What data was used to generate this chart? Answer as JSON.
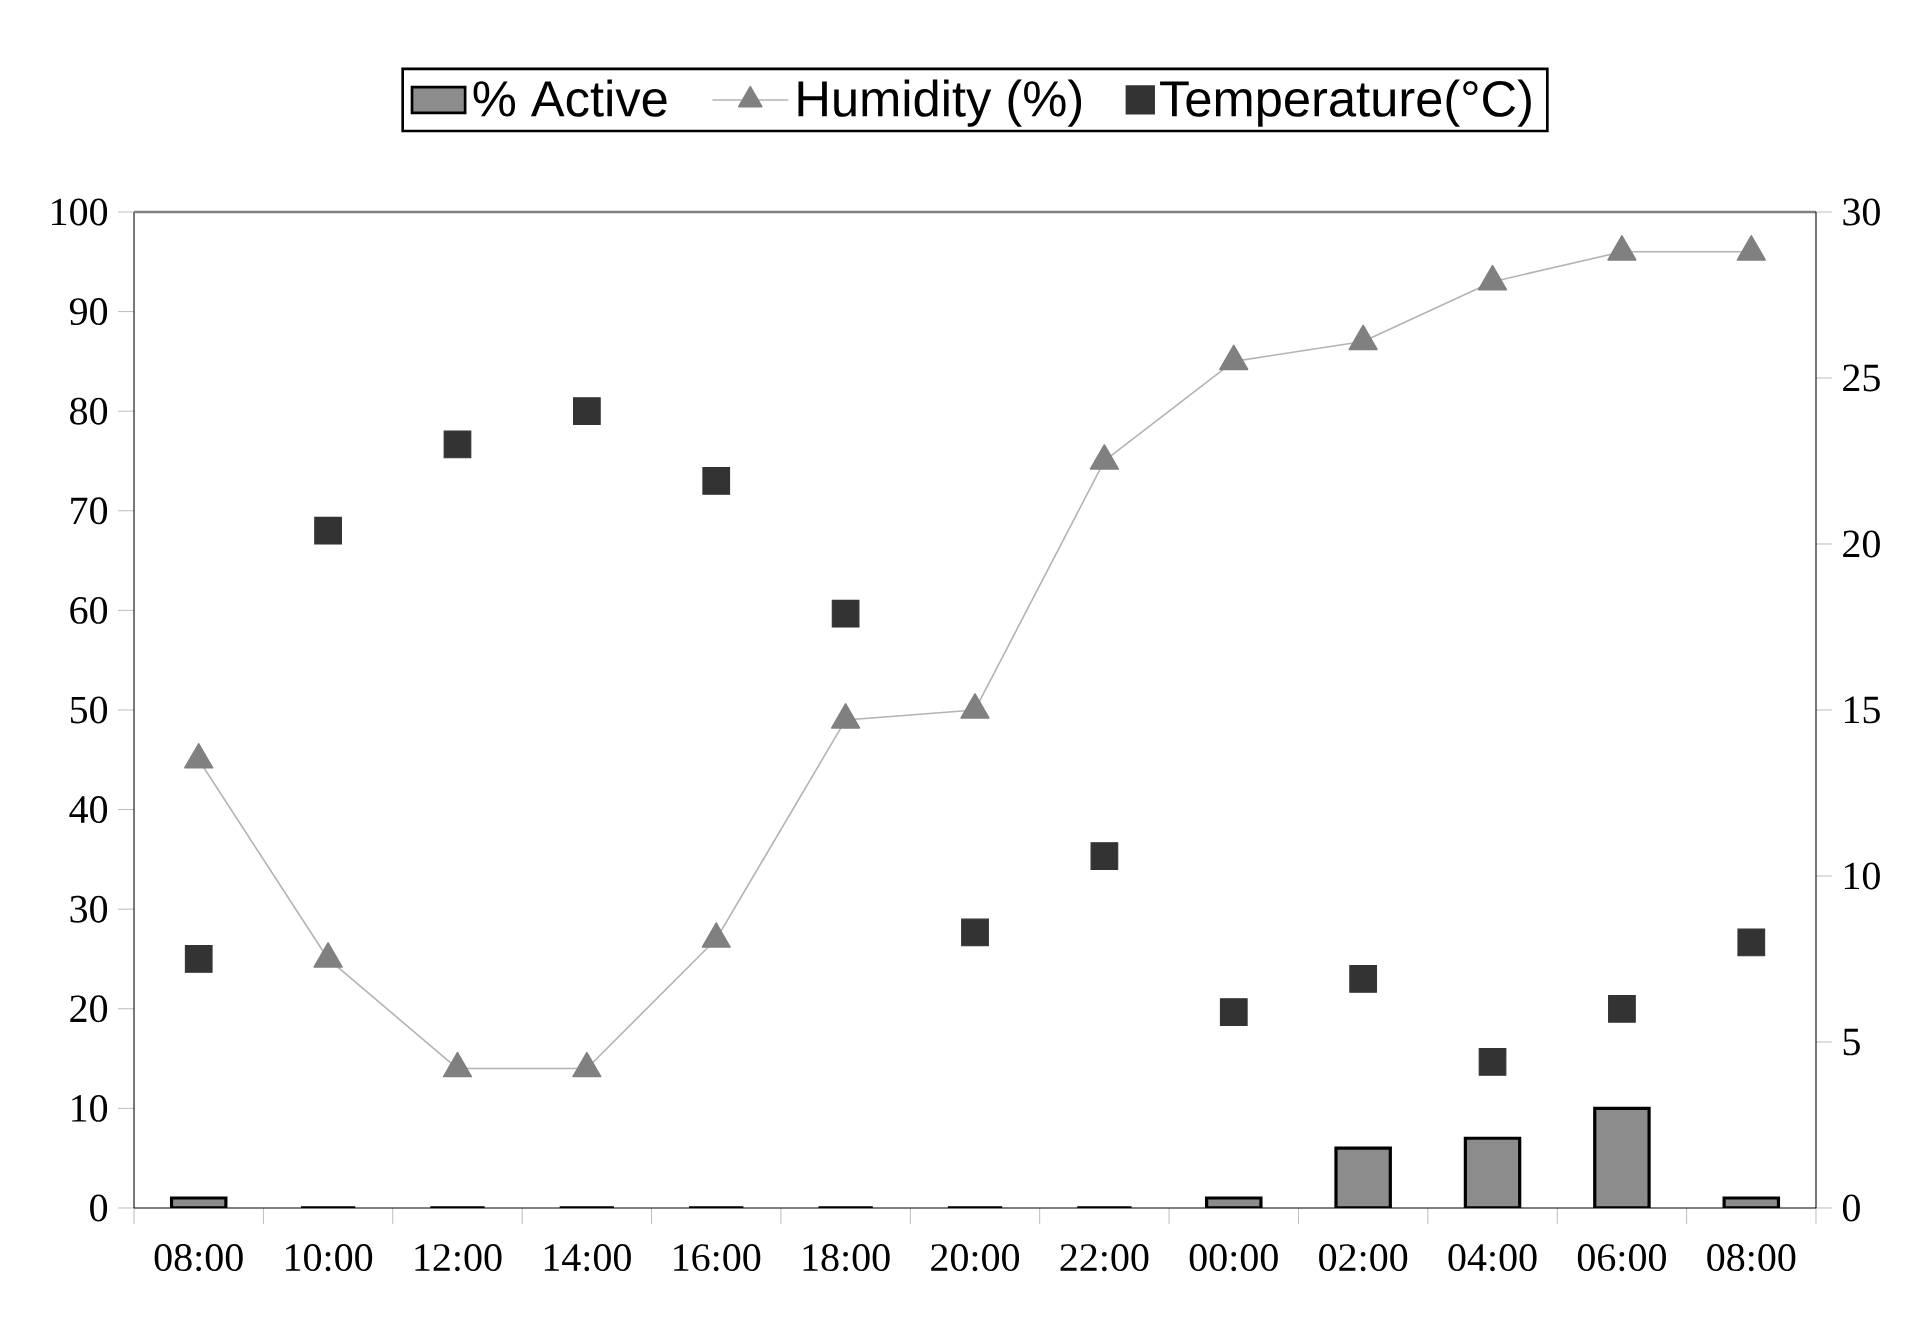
{
  "chart_data": {
    "type": "bar",
    "categories": [
      "08:00",
      "10:00",
      "12:00",
      "14:00",
      "16:00",
      "18:00",
      "20:00",
      "22:00",
      "00:00",
      "02:00",
      "04:00",
      "06:00",
      "08:00"
    ],
    "series": [
      {
        "name": "% Active",
        "color": "#8c8c8c",
        "values": [
          1,
          0,
          0,
          0,
          0,
          0,
          0,
          0,
          1,
          6,
          7,
          10,
          1
        ]
      },
      {
        "name": "Humidity (%)",
        "type": "line",
        "marker": "triangle",
        "color": "#808080",
        "values": [
          45,
          25,
          14,
          14,
          27,
          49,
          50,
          75,
          85,
          87,
          93,
          96,
          96
        ]
      },
      {
        "name": "Temperature(°C)",
        "type": "scatter",
        "marker": "square",
        "axis": "y2",
        "color": "#333333",
        "values": [
          7.5,
          20.4,
          23.0,
          24.0,
          21.9,
          17.9,
          8.3,
          10.6,
          5.9,
          6.9,
          4.4,
          6.0,
          8.0
        ]
      }
    ],
    "ylim": [
      0,
      100
    ],
    "yticks": [
      0,
      10,
      20,
      30,
      40,
      50,
      60,
      70,
      80,
      90,
      100
    ],
    "y2lim": [
      0,
      30
    ],
    "y2ticks": [
      0,
      5,
      10,
      15,
      20,
      25,
      30
    ],
    "grid": false,
    "legend": "top"
  }
}
